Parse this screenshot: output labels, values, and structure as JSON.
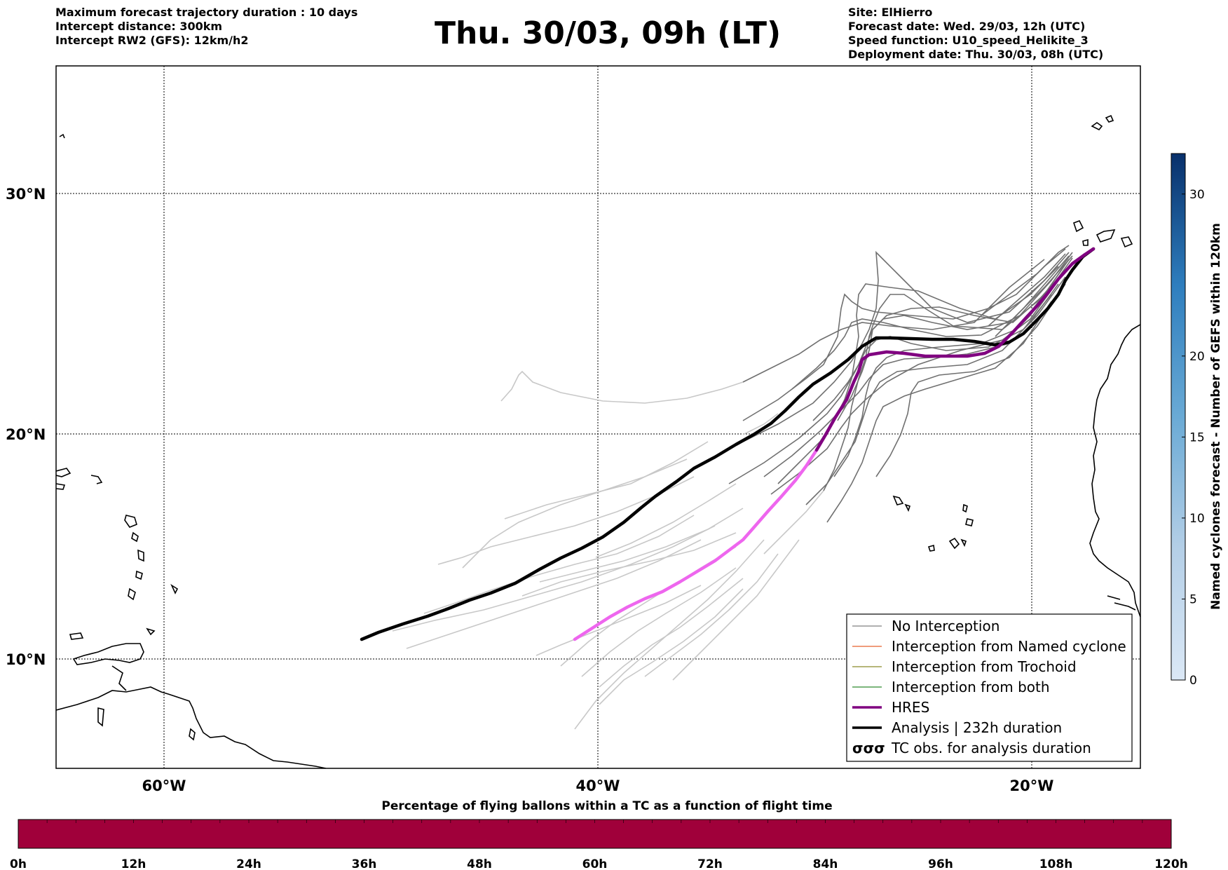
{
  "header": {
    "left": [
      "Maximum forecast trajectory duration : 10 days",
      "Intercept distance: 300km",
      "Intercept RW2 (GFS):  12km/h2"
    ],
    "title": "Thu. 30/03, 09h (LT)",
    "right": [
      "Site: ElHierro",
      "Forecast date: Wed. 29/03, 12h (UTC)",
      "Speed function: U10_speed_Helikite_3",
      "Deployment date: Thu. 30/03, 08h (UTC)"
    ]
  },
  "map": {
    "lat_labels": [
      "30°N",
      "20°N",
      "10°N"
    ],
    "lon_labels": [
      "60°W",
      "40°W",
      "20°W"
    ]
  },
  "legend": {
    "items": [
      {
        "label": "No Interception",
        "color": "#808080"
      },
      {
        "label": "Interception from Named cyclone",
        "color": "#e8602c"
      },
      {
        "label": "Interception from Trochoid",
        "color": "#8a8a2a"
      },
      {
        "label": "Interception from both",
        "color": "#2e8b2e"
      },
      {
        "label": "HRES",
        "color": "#800080"
      },
      {
        "label": "Analysis | 232h duration",
        "color": "#000000"
      },
      {
        "label": "TC obs. for analysis duration",
        "symbol": "σσσ"
      }
    ]
  },
  "colorbar_right": {
    "title": "Named cyclones forecast - Number of GEFS within 120km",
    "ticks": [
      "0",
      "5",
      "10",
      "15",
      "20",
      "30"
    ]
  },
  "colorbar_bottom": {
    "title": "Percentage of flying ballons within a TC as a function of flight time",
    "ticks": [
      "0h",
      "12h",
      "24h",
      "36h",
      "48h",
      "60h",
      "72h",
      "84h",
      "96h",
      "108h",
      "120h"
    ],
    "color": "#a0003a"
  }
}
